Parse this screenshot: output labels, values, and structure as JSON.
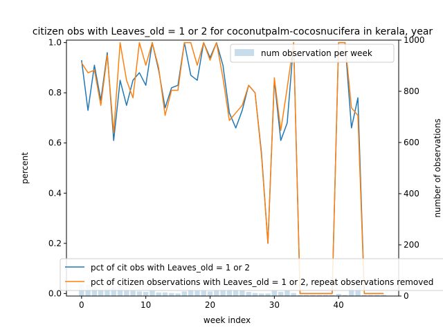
{
  "chart_data": {
    "type": "line",
    "title": "citizen obs with Leaves_old = 1 or 2 for coconutpalm-cocosnucifera in kerala, year",
    "xlabel": "week index",
    "ylabel": "percent",
    "y2label": "number of observations",
    "xlim": [
      -2.35,
      49.35
    ],
    "ylim": [
      -0.01,
      1.01
    ],
    "y2lim": [
      0,
      1000
    ],
    "xticks": [
      0,
      10,
      20,
      30,
      40
    ],
    "yticks": [
      0.0,
      0.2,
      0.4,
      0.6,
      0.8,
      1.0
    ],
    "y2ticks": [
      0,
      200,
      400,
      600,
      800,
      1000
    ],
    "grid": false,
    "x": [
      0,
      1,
      2,
      3,
      4,
      5,
      6,
      7,
      8,
      9,
      10,
      11,
      12,
      13,
      14,
      15,
      16,
      17,
      18,
      19,
      20,
      21,
      22,
      23,
      24,
      25,
      26,
      27,
      28,
      29,
      30,
      31,
      32,
      33,
      34,
      35,
      36,
      37,
      38,
      39,
      40,
      41,
      42,
      43,
      44,
      45,
      46,
      47
    ],
    "series": [
      {
        "name": "pct of cit obs with Leaves_old = 1 or 2",
        "color": "#1f77b4",
        "axis": "left",
        "values": [
          0.93,
          0.73,
          0.91,
          0.77,
          0.96,
          0.61,
          0.85,
          0.75,
          0.85,
          0.88,
          0.83,
          1.0,
          0.89,
          0.74,
          0.82,
          0.83,
          1.0,
          0.87,
          0.85,
          1.0,
          0.94,
          1.0,
          0.91,
          0.72,
          0.66,
          0.73,
          0.83,
          0.8,
          0.56,
          0.2,
          0.85,
          0.61,
          0.68,
          1.0,
          0.0,
          0.0,
          0.0,
          0.0,
          0.0,
          0.0,
          1.0,
          1.0,
          0.66,
          0.78,
          0.0,
          0.0,
          0.0,
          0.0
        ]
      },
      {
        "name": "pct of citizen observations with Leaves_old = 1 or 2, repeat observations removed",
        "color": "#ff7f0e",
        "axis": "left",
        "values": [
          0.92,
          0.88,
          0.89,
          0.75,
          0.95,
          0.64,
          1.0,
          0.85,
          0.78,
          1.0,
          0.91,
          1.0,
          0.9,
          0.71,
          0.81,
          0.81,
          1.0,
          1.0,
          0.91,
          1.0,
          0.93,
          1.0,
          0.86,
          0.69,
          0.72,
          0.75,
          0.83,
          0.8,
          0.55,
          0.2,
          0.86,
          0.65,
          0.82,
          1.0,
          0.0,
          0.0,
          0.0,
          0.0,
          0.0,
          0.0,
          1.0,
          1.0,
          0.74,
          0.71,
          0.0,
          0.0,
          0.0,
          0.0
        ]
      },
      {
        "name": "num observation per week",
        "type": "bar",
        "color": "#1f77b4",
        "opacity": 0.25,
        "axis": "right",
        "values": [
          48,
          45,
          35,
          25,
          28,
          35,
          40,
          22,
          20,
          18,
          16,
          20,
          14,
          14,
          12,
          10,
          18,
          24,
          20,
          20,
          18,
          22,
          26,
          28,
          26,
          24,
          16,
          12,
          10,
          10,
          20,
          16,
          24,
          12,
          4,
          4,
          4,
          4,
          4,
          4,
          8,
          4,
          40,
          42,
          4,
          4,
          4,
          4
        ]
      }
    ],
    "legend_upper": {
      "placement": "top-right",
      "entries": [
        "num observation per week"
      ]
    },
    "legend_lower": {
      "placement": "bottom-left",
      "entries": [
        "pct of cit obs with Leaves_old = 1 or 2",
        "pct of citizen observations with Leaves_old = 1 or 2, repeat observations removed"
      ]
    }
  }
}
